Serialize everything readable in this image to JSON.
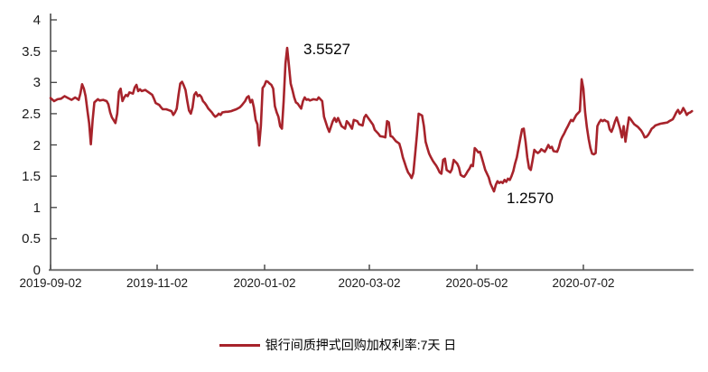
{
  "chart_data": {
    "type": "line",
    "series_name": "银行间质押式回购加权利率:7天",
    "frequency": "日",
    "start_date": "2019-09-02",
    "line_color": "#A7232B",
    "grid": false,
    "y_axis": {
      "min": 0,
      "max": 4,
      "step": 0.5,
      "ticks": [
        "4",
        "3.5",
        "3",
        "2.5",
        "2",
        "1.5",
        "1",
        "0.5",
        "0"
      ]
    },
    "x_axis": {
      "tick_labels": [
        "2019-09-02",
        "2019-11-02",
        "2020-01-02",
        "2020-03-02",
        "2020-05-02",
        "2020-07-02"
      ],
      "tick_days": [
        0,
        61,
        122,
        182,
        243,
        304
      ]
    },
    "annotations": [
      {
        "text": "3.5527",
        "day": 135,
        "value": 3.5527
      },
      {
        "text": "1.2570",
        "day": 253,
        "value": 1.257
      }
    ],
    "points": [
      [
        0,
        2.75
      ],
      [
        2,
        2.7
      ],
      [
        4,
        2.73
      ],
      [
        6,
        2.74
      ],
      [
        8,
        2.78
      ],
      [
        10,
        2.75
      ],
      [
        12,
        2.72
      ],
      [
        14,
        2.76
      ],
      [
        16,
        2.72
      ],
      [
        17,
        2.82
      ],
      [
        18,
        2.97
      ],
      [
        19,
        2.9
      ],
      [
        20,
        2.78
      ],
      [
        21,
        2.55
      ],
      [
        22,
        2.35
      ],
      [
        23,
        2.01
      ],
      [
        24,
        2.4
      ],
      [
        25,
        2.68
      ],
      [
        27,
        2.73
      ],
      [
        28,
        2.71
      ],
      [
        30,
        2.72
      ],
      [
        32,
        2.7
      ],
      [
        33,
        2.65
      ],
      [
        34,
        2.52
      ],
      [
        35,
        2.44
      ],
      [
        37,
        2.35
      ],
      [
        38,
        2.5
      ],
      [
        39,
        2.85
      ],
      [
        40,
        2.9
      ],
      [
        41,
        2.7
      ],
      [
        42,
        2.76
      ],
      [
        43,
        2.8
      ],
      [
        44,
        2.78
      ],
      [
        45,
        2.84
      ],
      [
        47,
        2.82
      ],
      [
        48,
        2.92
      ],
      [
        49,
        2.96
      ],
      [
        50,
        2.86
      ],
      [
        51,
        2.89
      ],
      [
        52,
        2.86
      ],
      [
        54,
        2.88
      ],
      [
        55,
        2.86
      ],
      [
        56,
        2.84
      ],
      [
        58,
        2.8
      ],
      [
        59,
        2.74
      ],
      [
        60,
        2.67
      ],
      [
        62,
        2.64
      ],
      [
        63,
        2.6
      ],
      [
        64,
        2.57
      ],
      [
        66,
        2.57
      ],
      [
        67,
        2.56
      ],
      [
        69,
        2.54
      ],
      [
        70,
        2.48
      ],
      [
        71,
        2.52
      ],
      [
        72,
        2.58
      ],
      [
        73,
        2.8
      ],
      [
        74,
        2.98
      ],
      [
        75,
        3.01
      ],
      [
        76,
        2.95
      ],
      [
        77,
        2.88
      ],
      [
        78,
        2.7
      ],
      [
        79,
        2.55
      ],
      [
        80,
        2.5
      ],
      [
        81,
        2.6
      ],
      [
        82,
        2.8
      ],
      [
        83,
        2.84
      ],
      [
        84,
        2.78
      ],
      [
        85,
        2.8
      ],
      [
        86,
        2.77
      ],
      [
        87,
        2.7
      ],
      [
        88,
        2.67
      ],
      [
        89,
        2.63
      ],
      [
        90,
        2.58
      ],
      [
        92,
        2.52
      ],
      [
        93,
        2.48
      ],
      [
        94,
        2.45
      ],
      [
        95,
        2.47
      ],
      [
        96,
        2.5
      ],
      [
        97,
        2.48
      ],
      [
        98,
        2.52
      ],
      [
        100,
        2.53
      ],
      [
        101,
        2.53
      ],
      [
        103,
        2.54
      ],
      [
        104,
        2.55
      ],
      [
        106,
        2.57
      ],
      [
        108,
        2.6
      ],
      [
        109,
        2.63
      ],
      [
        111,
        2.7
      ],
      [
        112,
        2.76
      ],
      [
        113,
        2.78
      ],
      [
        114,
        2.68
      ],
      [
        115,
        2.72
      ],
      [
        116,
        2.6
      ],
      [
        117,
        2.4
      ],
      [
        118,
        2.33
      ],
      [
        119,
        1.99
      ],
      [
        120,
        2.31
      ],
      [
        121,
        2.91
      ],
      [
        122,
        2.95
      ],
      [
        123,
        3.02
      ],
      [
        124,
        3.01
      ],
      [
        125,
        2.98
      ],
      [
        126,
        2.96
      ],
      [
        127,
        2.9
      ],
      [
        128,
        2.62
      ],
      [
        129,
        2.52
      ],
      [
        130,
        2.45
      ],
      [
        131,
        2.3
      ],
      [
        132,
        2.26
      ],
      [
        133,
        2.7
      ],
      [
        134,
        3.3
      ],
      [
        135,
        3.5527
      ],
      [
        136,
        3.28
      ],
      [
        137,
        2.98
      ],
      [
        138,
        2.88
      ],
      [
        139,
        2.76
      ],
      [
        140,
        2.68
      ],
      [
        141,
        2.66
      ],
      [
        142,
        2.62
      ],
      [
        143,
        2.58
      ],
      [
        144,
        2.7
      ],
      [
        145,
        2.76
      ],
      [
        146,
        2.72
      ],
      [
        147,
        2.73
      ],
      [
        148,
        2.71
      ],
      [
        150,
        2.73
      ],
      [
        152,
        2.72
      ],
      [
        153,
        2.76
      ],
      [
        155,
        2.7
      ],
      [
        156,
        2.45
      ],
      [
        158,
        2.28
      ],
      [
        159,
        2.21
      ],
      [
        161,
        2.38
      ],
      [
        162,
        2.43
      ],
      [
        163,
        2.37
      ],
      [
        164,
        2.43
      ],
      [
        166,
        2.3
      ],
      [
        168,
        2.26
      ],
      [
        169,
        2.38
      ],
      [
        170,
        2.35
      ],
      [
        172,
        2.26
      ],
      [
        173,
        2.4
      ],
      [
        175,
        2.38
      ],
      [
        176,
        2.33
      ],
      [
        178,
        2.31
      ],
      [
        179,
        2.44
      ],
      [
        180,
        2.48
      ],
      [
        182,
        2.4
      ],
      [
        184,
        2.32
      ],
      [
        185,
        2.24
      ],
      [
        187,
        2.18
      ],
      [
        188,
        2.14
      ],
      [
        190,
        2.13
      ],
      [
        191,
        2.12
      ],
      [
        192,
        2.38
      ],
      [
        193,
        2.36
      ],
      [
        194,
        2.14
      ],
      [
        195,
        2.13
      ],
      [
        197,
        2.06
      ],
      [
        199,
        2.02
      ],
      [
        200,
        1.92
      ],
      [
        201,
        1.8
      ],
      [
        202,
        1.72
      ],
      [
        203,
        1.63
      ],
      [
        204,
        1.56
      ],
      [
        205,
        1.52
      ],
      [
        206,
        1.47
      ],
      [
        207,
        1.55
      ],
      [
        208,
        1.85
      ],
      [
        209,
        2.15
      ],
      [
        210,
        2.5
      ],
      [
        212,
        2.47
      ],
      [
        213,
        2.3
      ],
      [
        214,
        2.05
      ],
      [
        215,
        1.95
      ],
      [
        216,
        1.86
      ],
      [
        217,
        1.8
      ],
      [
        218,
        1.75
      ],
      [
        219,
        1.71
      ],
      [
        220,
        1.67
      ],
      [
        221,
        1.62
      ],
      [
        222,
        1.56
      ],
      [
        223,
        1.54
      ],
      [
        224,
        1.76
      ],
      [
        225,
        1.78
      ],
      [
        226,
        1.6
      ],
      [
        228,
        1.56
      ],
      [
        229,
        1.61
      ],
      [
        230,
        1.76
      ],
      [
        231,
        1.73
      ],
      [
        232,
        1.7
      ],
      [
        233,
        1.64
      ],
      [
        234,
        1.52
      ],
      [
        235,
        1.5
      ],
      [
        236,
        1.49
      ],
      [
        237,
        1.53
      ],
      [
        238,
        1.58
      ],
      [
        239,
        1.62
      ],
      [
        240,
        1.68
      ],
      [
        241,
        1.66
      ],
      [
        242,
        1.95
      ],
      [
        243,
        1.92
      ],
      [
        244,
        1.88
      ],
      [
        245,
        1.89
      ],
      [
        246,
        1.8
      ],
      [
        247,
        1.7
      ],
      [
        248,
        1.6
      ],
      [
        249,
        1.54
      ],
      [
        250,
        1.48
      ],
      [
        251,
        1.38
      ],
      [
        253,
        1.257
      ],
      [
        254,
        1.36
      ],
      [
        255,
        1.42
      ],
      [
        256,
        1.39
      ],
      [
        257,
        1.41
      ],
      [
        258,
        1.39
      ],
      [
        259,
        1.44
      ],
      [
        260,
        1.41
      ],
      [
        261,
        1.46
      ],
      [
        262,
        1.44
      ],
      [
        263,
        1.5
      ],
      [
        264,
        1.58
      ],
      [
        265,
        1.7
      ],
      [
        266,
        1.8
      ],
      [
        267,
        1.95
      ],
      [
        268,
        2.1
      ],
      [
        269,
        2.25
      ],
      [
        270,
        2.26
      ],
      [
        271,
        2.05
      ],
      [
        272,
        1.8
      ],
      [
        273,
        1.63
      ],
      [
        274,
        1.6
      ],
      [
        275,
        1.75
      ],
      [
        276,
        1.92
      ],
      [
        277,
        1.89
      ],
      [
        278,
        1.87
      ],
      [
        279,
        1.89
      ],
      [
        280,
        1.93
      ],
      [
        281,
        1.91
      ],
      [
        282,
        1.89
      ],
      [
        283,
        1.94
      ],
      [
        284,
        2.0
      ],
      [
        285,
        1.95
      ],
      [
        286,
        1.97
      ],
      [
        287,
        1.9
      ],
      [
        289,
        1.89
      ],
      [
        290,
        1.96
      ],
      [
        291,
        2.07
      ],
      [
        292,
        2.13
      ],
      [
        293,
        2.18
      ],
      [
        294,
        2.24
      ],
      [
        295,
        2.29
      ],
      [
        296,
        2.35
      ],
      [
        297,
        2.4
      ],
      [
        298,
        2.38
      ],
      [
        299,
        2.43
      ],
      [
        300,
        2.48
      ],
      [
        301,
        2.51
      ],
      [
        302,
        2.54
      ],
      [
        303,
        3.05
      ],
      [
        304,
        2.9
      ],
      [
        305,
        2.53
      ],
      [
        306,
        2.28
      ],
      [
        307,
        2.1
      ],
      [
        308,
        1.95
      ],
      [
        309,
        1.86
      ],
      [
        310,
        1.85
      ],
      [
        311,
        1.87
      ],
      [
        312,
        2.3
      ],
      [
        313,
        2.36
      ],
      [
        314,
        2.4
      ],
      [
        315,
        2.38
      ],
      [
        316,
        2.4
      ],
      [
        317,
        2.38
      ],
      [
        318,
        2.37
      ],
      [
        319,
        2.25
      ],
      [
        320,
        2.21
      ],
      [
        321,
        2.28
      ],
      [
        322,
        2.37
      ],
      [
        323,
        2.44
      ],
      [
        324,
        2.35
      ],
      [
        325,
        2.25
      ],
      [
        326,
        2.12
      ],
      [
        327,
        2.3
      ],
      [
        328,
        2.05
      ],
      [
        329,
        2.25
      ],
      [
        330,
        2.44
      ],
      [
        331,
        2.41
      ],
      [
        332,
        2.37
      ],
      [
        333,
        2.33
      ],
      [
        334,
        2.31
      ],
      [
        335,
        2.29
      ],
      [
        336,
        2.26
      ],
      [
        337,
        2.23
      ],
      [
        338,
        2.18
      ],
      [
        339,
        2.12
      ],
      [
        340,
        2.13
      ],
      [
        341,
        2.16
      ],
      [
        342,
        2.21
      ],
      [
        343,
        2.26
      ],
      [
        344,
        2.28
      ],
      [
        345,
        2.31
      ],
      [
        346,
        2.32
      ],
      [
        347,
        2.33
      ],
      [
        348,
        2.34
      ],
      [
        350,
        2.35
      ],
      [
        352,
        2.36
      ],
      [
        353,
        2.38
      ],
      [
        355,
        2.41
      ],
      [
        356,
        2.46
      ],
      [
        357,
        2.52
      ],
      [
        358,
        2.56
      ],
      [
        359,
        2.5
      ],
      [
        360,
        2.53
      ],
      [
        361,
        2.59
      ],
      [
        362,
        2.54
      ],
      [
        363,
        2.48
      ],
      [
        364,
        2.51
      ],
      [
        365,
        2.52
      ],
      [
        366,
        2.54
      ]
    ]
  },
  "legend": {
    "label": "银行间质押式回购加权利率:7天 日"
  }
}
